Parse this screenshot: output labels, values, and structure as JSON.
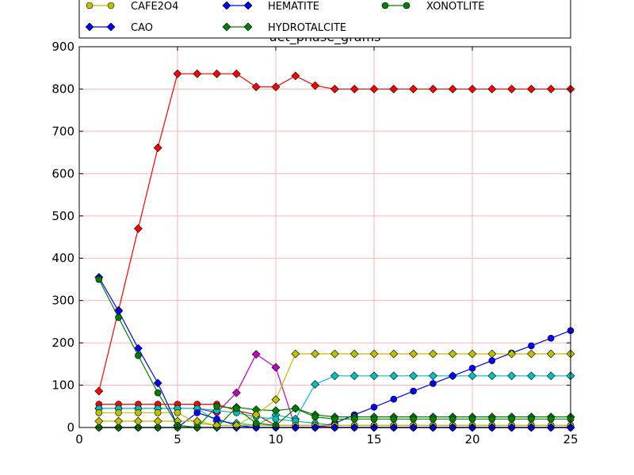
{
  "chart_data": {
    "type": "line",
    "title": "uet_phase_grams",
    "xlabel": "",
    "ylabel": "",
    "xlim": [
      0,
      25
    ],
    "ylim": [
      0,
      900
    ],
    "xticks": [
      0,
      5,
      10,
      15,
      20,
      25
    ],
    "yticks": [
      0,
      100,
      200,
      300,
      400,
      500,
      600,
      700,
      800,
      900
    ],
    "grid": true,
    "grid_color": "#ffb3b3",
    "legend_position": "top",
    "x": [
      1,
      2,
      3,
      4,
      5,
      6,
      7,
      8,
      9,
      10,
      11,
      12,
      13,
      14,
      15,
      16,
      17,
      18,
      19,
      20,
      21,
      22,
      23,
      24,
      25
    ],
    "series": [
      {
        "name": "",
        "color": "#ff0000",
        "marker": "diamond",
        "values": [
          86,
          277,
          470,
          661,
          836,
          836,
          836,
          836,
          805,
          805,
          831,
          808,
          800,
          800,
          800,
          800,
          800,
          800,
          800,
          800,
          800,
          800,
          800,
          800,
          800
        ]
      },
      {
        "name": "",
        "color": "#c000c0",
        "marker": "diamond",
        "values": [
          45,
          45,
          45,
          45,
          45,
          45,
          35,
          82,
          173,
          142,
          0,
          0,
          0,
          0,
          0,
          0,
          0,
          0,
          0,
          0,
          0,
          0,
          0,
          0,
          0
        ]
      },
      {
        "name": "",
        "color": "#00bfbf",
        "marker": "diamond",
        "values": [
          45,
          45,
          45,
          45,
          45,
          45,
          15,
          10,
          5,
          30,
          20,
          102,
          122,
          122,
          122,
          122,
          122,
          122,
          122,
          122,
          122,
          122,
          122,
          122,
          122
        ]
      },
      {
        "name": "",
        "color": "#ff0000",
        "marker": "circle",
        "values": [
          55,
          55,
          55,
          55,
          55,
          55,
          55,
          40,
          30,
          5,
          5,
          5,
          0,
          0,
          0,
          0,
          0,
          0,
          0,
          0,
          0,
          0,
          0,
          0,
          0
        ]
      },
      {
        "name": "",
        "color": "#00bfbf",
        "marker": "circle",
        "values": [
          45,
          45,
          45,
          45,
          45,
          45,
          40,
          35,
          25,
          20,
          15,
          10,
          5,
          5,
          5,
          5,
          5,
          5,
          5,
          5,
          5,
          5,
          5,
          5,
          5
        ]
      },
      {
        "name": "",
        "color": "#0000ff",
        "marker": "circle",
        "values": [
          0,
          0,
          0,
          0,
          0,
          35,
          20,
          5,
          0,
          0,
          0,
          0,
          10,
          30,
          48,
          67,
          86,
          104,
          122,
          140,
          158,
          176,
          193,
          211,
          229
        ]
      },
      {
        "name": "CAFE2O4",
        "color": "#bfbf00",
        "marker": "circle",
        "values": [
          35,
          35,
          35,
          35,
          35,
          10,
          5,
          5,
          5,
          5,
          5,
          5,
          5,
          5,
          5,
          5,
          5,
          5,
          5,
          5,
          5,
          5,
          5,
          5,
          5
        ]
      },
      {
        "name": "CAO",
        "color": "#0000ff",
        "marker": "diamond",
        "values": [
          355,
          275,
          187,
          105,
          5,
          0,
          0,
          0,
          0,
          0,
          0,
          0,
          0,
          0,
          0,
          0,
          0,
          0,
          0,
          0,
          0,
          0,
          0,
          0,
          0
        ]
      },
      {
        "name": "HEMATITE",
        "color": "#0000ff",
        "marker": "diamond",
        "values": [
          0,
          0,
          0,
          0,
          0,
          0,
          0,
          0,
          0,
          0,
          0,
          0,
          0,
          0,
          0,
          0,
          0,
          0,
          0,
          0,
          0,
          0,
          0,
          0,
          0
        ]
      },
      {
        "name": "HYDROTALCITE",
        "color": "#008000",
        "marker": "diamond",
        "values": [
          0,
          0,
          0,
          0,
          0,
          0,
          0,
          48,
          42,
          40,
          45,
          30,
          25,
          25,
          25,
          25,
          25,
          25,
          25,
          25,
          25,
          25,
          25,
          25,
          25
        ]
      },
      {
        "name": "",
        "color": "#bfbf00",
        "marker": "diamond",
        "values": [
          15,
          15,
          15,
          15,
          15,
          15,
          5,
          5,
          30,
          66,
          174,
          174,
          174,
          174,
          174,
          174,
          174,
          174,
          174,
          174,
          174,
          174,
          174,
          174,
          174
        ]
      },
      {
        "name": "XONOTLITE",
        "color": "#008000",
        "marker": "circle",
        "values": [
          350,
          260,
          170,
          82,
          5,
          0,
          50,
          45,
          10,
          5,
          45,
          25,
          20,
          20,
          20,
          20,
          20,
          20,
          20,
          20,
          20,
          20,
          20,
          20,
          20
        ]
      }
    ],
    "legend": [
      {
        "label": "CAFE2O4",
        "color": "#bfbf00",
        "marker": "circle"
      },
      {
        "label": "HEMATITE",
        "color": "#0000ff",
        "marker": "diamond"
      },
      {
        "label": "XONOTLITE",
        "color": "#008000",
        "marker": "circle"
      },
      {
        "label": "CAO",
        "color": "#0000ff",
        "marker": "diamond"
      },
      {
        "label": "HYDROTALCITE",
        "color": "#008000",
        "marker": "diamond"
      }
    ]
  }
}
